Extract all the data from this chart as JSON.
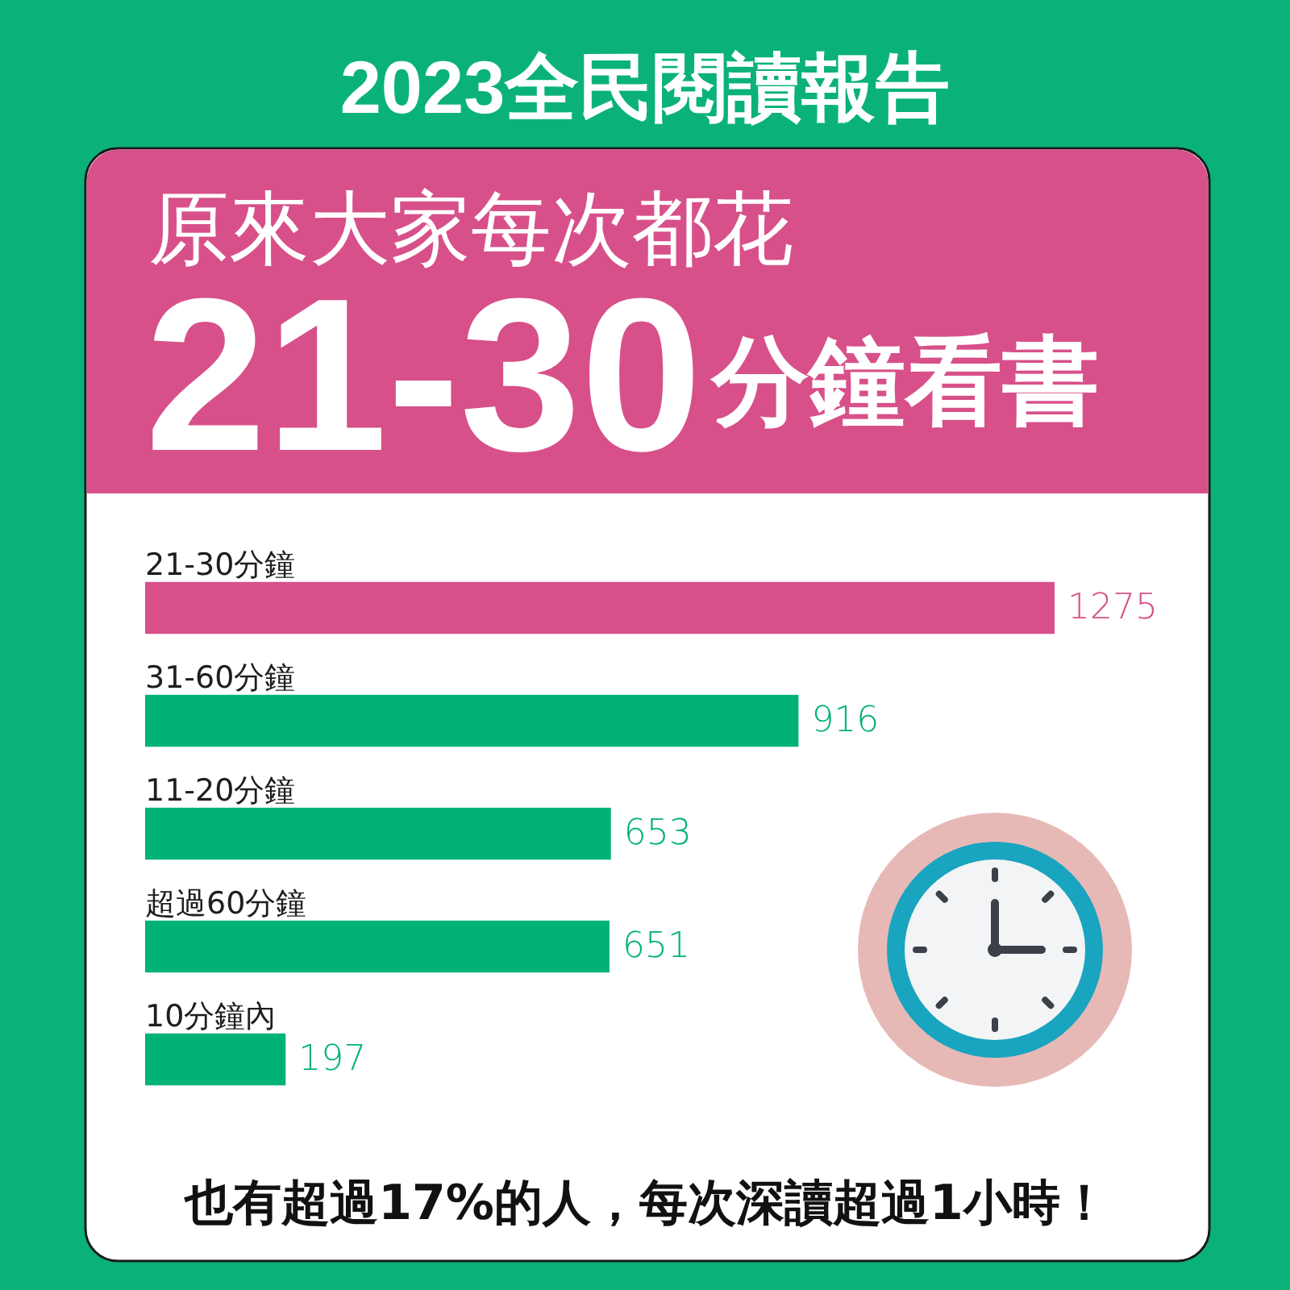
{
  "chart_data": {
    "type": "bar",
    "orientation": "horizontal",
    "title": "2023全民閱讀報告",
    "subtitle": "原來大家每次都花",
    "annotations": [
      "21-30分鐘看書",
      "也有超過17%的人，每次深讀超過1小時！"
    ],
    "categories": [
      "21-30分鐘",
      "31-60分鐘",
      "11-20分鐘",
      "超過60分鐘",
      "10分鐘內"
    ],
    "values": [
      1275,
      916,
      653,
      651,
      197
    ],
    "colors": [
      "#d75089",
      "#00b278",
      "#00b278",
      "#00b278",
      "#00b278"
    ],
    "data_labels": true
  }
}
